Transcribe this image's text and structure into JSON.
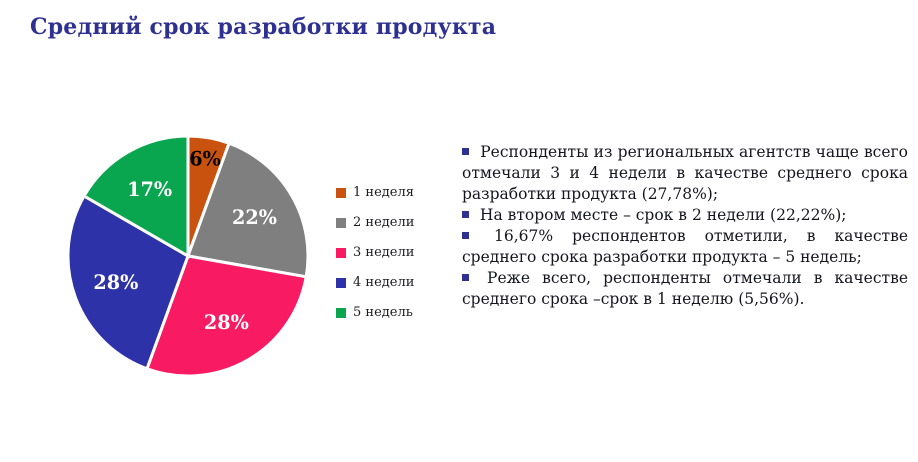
{
  "page": {
    "title": "Средний срок разработки продукта",
    "title_color": "#2E3192",
    "background": "#FFFFFF"
  },
  "chart_data": {
    "type": "pie",
    "title": "Средний срок разработки продукта",
    "start_angle_deg": 0,
    "direction": "clockwise",
    "legend_position": "right",
    "slices": [
      {
        "label": "1 неделя",
        "value": 5.56,
        "display": "6%",
        "color": "#C9520E",
        "label_color": "#000000"
      },
      {
        "label": "2 недели",
        "value": 22.22,
        "display": "22%",
        "color": "#7F7F7F",
        "label_color": "#FFFFFF"
      },
      {
        "label": "3 недели",
        "value": 27.78,
        "display": "28%",
        "color": "#F81B63",
        "label_color": "#FFFFFF"
      },
      {
        "label": "4 недели",
        "value": 27.78,
        "display": "28%",
        "color": "#2E32A8",
        "label_color": "#FFFFFF"
      },
      {
        "label": "5 недель",
        "value": 16.67,
        "display": "17%",
        "color": "#0AA64F",
        "label_color": "#FFFFFF"
      }
    ]
  },
  "notes": {
    "bullet_color": "#2E3192",
    "items": [
      "Респонденты из региональных агентств  чаще всего отмечали 3 и 4 недели в качестве среднего срока разработки продукта (27,78%);",
      "На втором месте  – срок в 2 недели (22,22%);",
      "16,67% респондентов отметили, в качестве среднего срока разработки продукта – 5 недель;",
      "Реже всего, респонденты отмечали в качестве среднего срока –срок в 1 неделю (5,56%)."
    ]
  }
}
